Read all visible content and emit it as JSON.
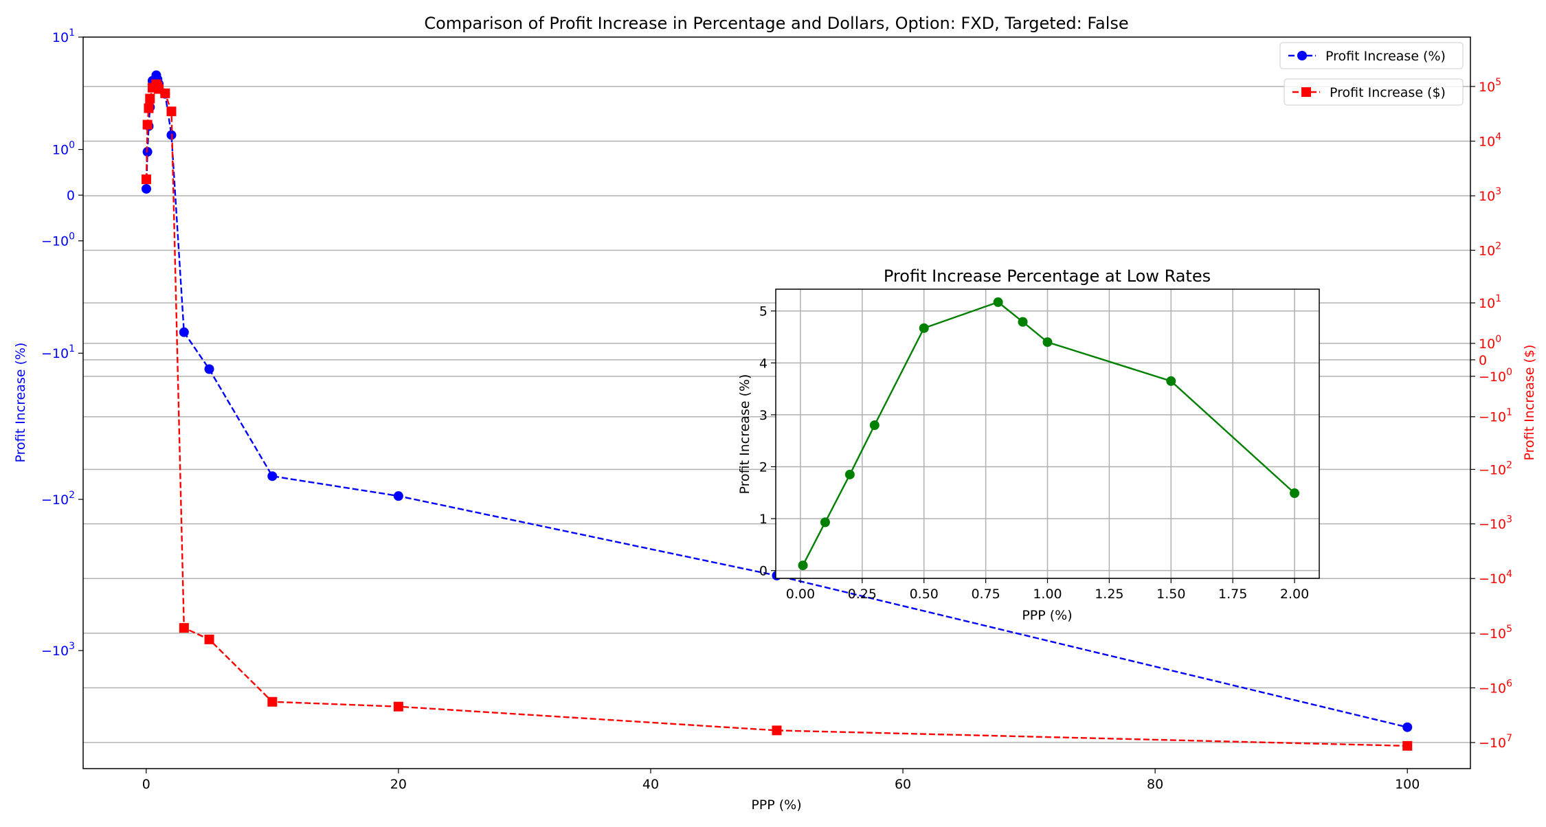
{
  "chart_data": [
    {
      "type": "line",
      "title": "Comparison of Profit Increase in Percentage and Dollars, Option: FXD, Targeted: False",
      "xlabel": "PPP (%)",
      "ylabel_left": "Profit Increase (%)",
      "ylabel_right": "Profit Increase ($)",
      "xlim": [
        -5,
        105
      ],
      "x_ticks": [
        0,
        20,
        40,
        60,
        80,
        100
      ],
      "x_tick_labels": [
        "0",
        "20",
        "40",
        "60",
        "80",
        "100"
      ],
      "left_axis": {
        "scale": "symlog",
        "ylim": [
          -6000,
          10
        ],
        "ticks": [
          10,
          1,
          0,
          -1,
          -10,
          -100,
          -1000
        ],
        "tick_labels": [
          {
            "base": "10",
            "exp": "1"
          },
          {
            "base": "10",
            "exp": "0"
          },
          {
            "base": "0",
            "exp": ""
          },
          {
            "base": "−10",
            "exp": "0"
          },
          {
            "base": "−10",
            "exp": "1"
          },
          {
            "base": "−10",
            "exp": "2"
          },
          {
            "base": "−10",
            "exp": "3"
          }
        ],
        "color": "#0000ff"
      },
      "right_axis": {
        "scale": "symlog",
        "ylim": [
          -30000000,
          800000
        ],
        "ticks": [
          100000,
          10000,
          1000,
          100,
          10,
          1,
          0,
          -1,
          -10,
          -100,
          -1000,
          -10000,
          -100000,
          -1000000,
          -10000000
        ],
        "tick_labels": [
          {
            "base": "10",
            "exp": "5"
          },
          {
            "base": "10",
            "exp": "4"
          },
          {
            "base": "10",
            "exp": "3"
          },
          {
            "base": "10",
            "exp": "2"
          },
          {
            "base": "10",
            "exp": "1"
          },
          {
            "base": "10",
            "exp": "0"
          },
          {
            "base": "0",
            "exp": ""
          },
          {
            "base": "−10",
            "exp": "0"
          },
          {
            "base": "−10",
            "exp": "1"
          },
          {
            "base": "−10",
            "exp": "2"
          },
          {
            "base": "−10",
            "exp": "3"
          },
          {
            "base": "−10",
            "exp": "4"
          },
          {
            "base": "−10",
            "exp": "5"
          },
          {
            "base": "−10",
            "exp": "6"
          },
          {
            "base": "−10",
            "exp": "7"
          }
        ],
        "color": "#ff0000"
      },
      "grid": "horizontal (right axis)",
      "series": [
        {
          "name": "Profit Increase (%)",
          "axis": "left",
          "color": "#0000ff",
          "marker": "circle",
          "linestyle": "dashed",
          "x": [
            0.01,
            0.1,
            0.2,
            0.3,
            0.5,
            0.8,
            0.9,
            1.0,
            1.5,
            2.0,
            3,
            5,
            10,
            20,
            50,
            100
          ],
          "y": [
            0.1,
            0.93,
            1.85,
            2.8,
            4.67,
            5.17,
            4.79,
            4.4,
            3.65,
            1.49,
            -7,
            -13,
            -70,
            -95,
            -320,
            -3200
          ]
        },
        {
          "name": "Profit Increase ($)",
          "axis": "right",
          "color": "#ff0000",
          "marker": "square",
          "linestyle": "dashed",
          "x": [
            0.01,
            0.1,
            0.2,
            0.3,
            0.5,
            0.8,
            0.9,
            1.0,
            1.5,
            2.0,
            3,
            5,
            10,
            20,
            50,
            100
          ],
          "y": [
            2000,
            20000,
            40000,
            60000,
            95000,
            110000,
            100000,
            90000,
            75000,
            35000,
            -80000,
            -130000,
            -1800000,
            -2200000,
            -6000000,
            -11500000
          ]
        }
      ],
      "legend": [
        {
          "label": "Profit Increase (%)",
          "placement": "top-right"
        },
        {
          "label": "Profit Increase ($)",
          "placement": "top-right"
        }
      ]
    },
    {
      "type": "line",
      "title": "Profit Increase Percentage at Low Rates",
      "xlabel": "PPP (%)",
      "ylabel": "Profit Increase (%)",
      "xlim": [
        -0.1,
        2.1
      ],
      "ylim": [
        -0.15,
        5.42
      ],
      "x_ticks": [
        0,
        0.25,
        0.5,
        0.75,
        1.0,
        1.25,
        1.5,
        1.75,
        2.0
      ],
      "x_tick_labels": [
        "0.00",
        "0.25",
        "0.50",
        "0.75",
        "1.00",
        "1.25",
        "1.50",
        "1.75",
        "2.00"
      ],
      "y_ticks": [
        0,
        1,
        2,
        3,
        4,
        5
      ],
      "y_tick_labels": [
        "0",
        "1",
        "2",
        "3",
        "4",
        "5"
      ],
      "grid": true,
      "series": [
        {
          "color": "#008000",
          "marker": "circle",
          "linestyle": "solid",
          "x": [
            0.01,
            0.1,
            0.2,
            0.3,
            0.5,
            0.8,
            0.9,
            1.0,
            1.5,
            2.0
          ],
          "y": [
            0.1,
            0.93,
            1.85,
            2.8,
            4.67,
            5.17,
            4.79,
            4.4,
            3.65,
            1.49
          ]
        }
      ]
    }
  ]
}
